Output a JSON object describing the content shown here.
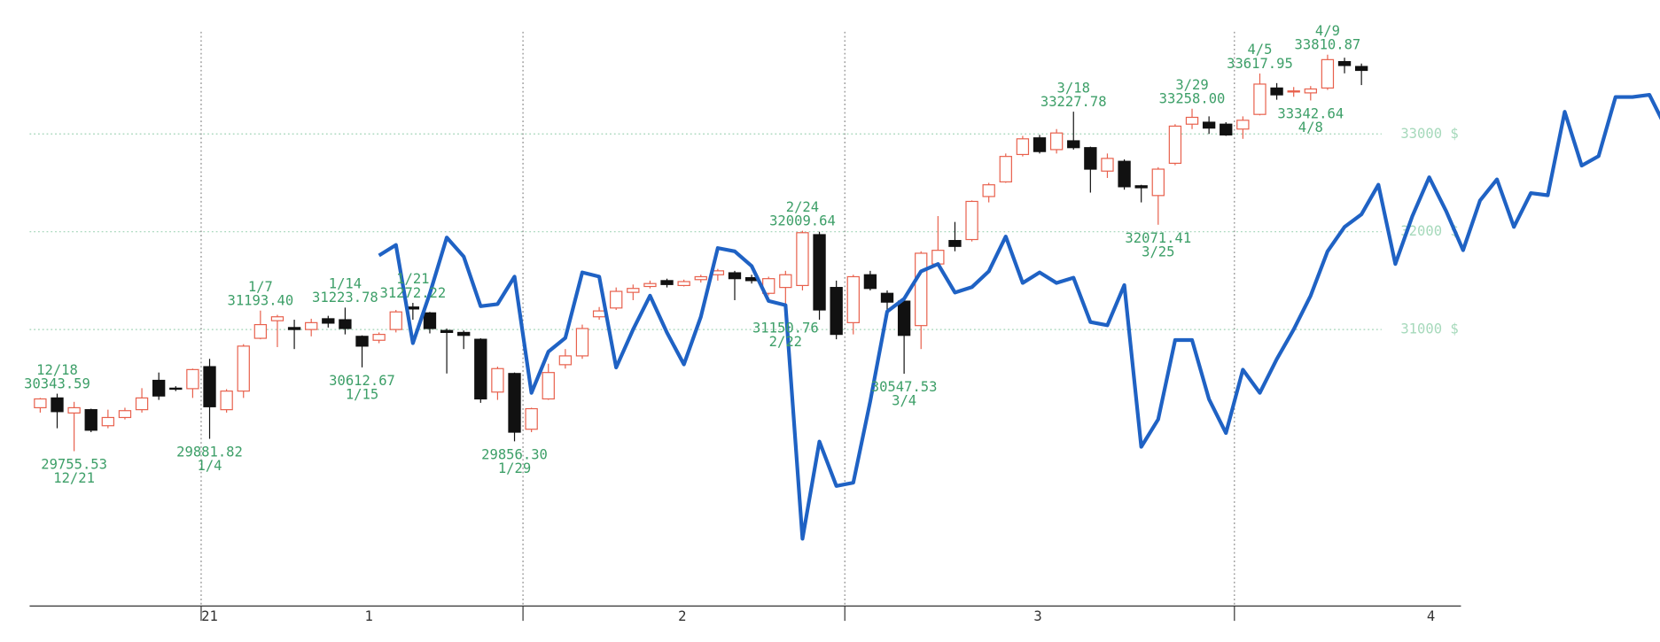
{
  "chart_data": {
    "type": "candlestick",
    "ylim": [
      28150,
      34370
    ],
    "yticks": [
      {
        "value": 31000,
        "label": "31000 $"
      },
      {
        "value": 32000,
        "label": "32000 $"
      },
      {
        "value": 33000,
        "label": "33000 $"
      }
    ],
    "xticks": [
      {
        "value": 10,
        "label": "21"
      },
      {
        "value": 19.4,
        "label": "1"
      },
      {
        "value": 37.9,
        "label": "2"
      },
      {
        "value": 58.9,
        "label": "3"
      },
      {
        "value": 82.1,
        "label": "4"
      }
    ],
    "xgrid": [
      9.5,
      28.5,
      47.5,
      70.5
    ],
    "grid": true,
    "categories": [
      null,
      "12/18",
      "12/21",
      null,
      null,
      null,
      null,
      null,
      null,
      null,
      "1/4",
      null,
      null,
      "1/7",
      null,
      null,
      null,
      null,
      "1/14",
      "1/15",
      null,
      null,
      "1/21",
      null,
      null,
      null,
      null,
      null,
      "1/29",
      null,
      null,
      null,
      null,
      null,
      null,
      null,
      null,
      null,
      null,
      null,
      null,
      null,
      null,
      null,
      "2/22",
      "2/24",
      null,
      null,
      null,
      null,
      null,
      "3/4",
      null,
      null,
      null,
      null,
      null,
      null,
      null,
      null,
      null,
      "3/18",
      null,
      null,
      null,
      null,
      "3/25",
      null,
      "3/29",
      null,
      null,
      null,
      "4/5",
      null,
      null,
      "4/8",
      "4/9",
      null,
      null,
      null,
      null,
      null,
      null,
      null,
      null,
      null,
      null,
      null,
      null,
      null,
      null,
      null,
      null,
      null,
      null,
      null,
      null
    ],
    "series": [
      {
        "type": "candlestick",
        "up_color": "#e8604c",
        "down_color": "#111111",
        "open": [
          30200,
          30300,
          30146,
          30180,
          30016,
          30100,
          30180,
          30480,
          30400,
          30395,
          30620,
          30180,
          30370,
          30910,
          31090,
          31020,
          31000,
          31110,
          31100,
          30930,
          30890,
          31000,
          31230,
          31170,
          30990,
          30970,
          30900,
          30360,
          30550,
          29980,
          30290,
          30640,
          30730,
          31130,
          31220,
          31380,
          31440,
          31500,
          31450,
          31510,
          31560,
          31580,
          31530,
          31370,
          31430,
          31450,
          31970,
          31430,
          31070,
          31560,
          31370,
          31290,
          31040,
          31670,
          31910,
          31920,
          32360,
          32510,
          32790,
          32960,
          32840,
          32930,
          32860,
          32620,
          32720,
          32470,
          32370,
          32700,
          33100,
          33120,
          33100,
          33050,
          33200,
          33470,
          33430,
          33420,
          33470,
          33740,
          33690,
          null,
          null,
          null,
          null,
          null,
          null,
          null,
          null,
          null,
          null,
          null,
          null,
          null,
          null,
          null,
          null,
          null,
          null
        ],
        "high": [
          30300,
          30343.59,
          30260,
          30190,
          30180,
          30200,
          30400,
          30560,
          30420,
          30600,
          30700,
          30390,
          30850,
          31193.4,
          31150,
          31100,
          31110,
          31140,
          31223.78,
          30940,
          30970,
          31200,
          31272.22,
          31180,
          31010,
          30990,
          30910,
          30620,
          30560,
          30200,
          30650,
          30800,
          31050,
          31230,
          31430,
          31460,
          31500,
          31520,
          31510,
          31560,
          31620,
          31600,
          31560,
          31540,
          31600,
          32009.64,
          32000,
          31500,
          31560,
          31600,
          31400,
          31300,
          31800,
          32160,
          32100,
          32320,
          32500,
          32800,
          32980,
          32990,
          33050,
          33227.78,
          32870,
          32800,
          32740,
          32480,
          32660,
          33100,
          33258,
          33180,
          33120,
          33180,
          33617.95,
          33520,
          33480,
          33490,
          33810.87,
          33780,
          33720,
          null,
          null,
          null,
          null,
          null,
          null,
          null,
          null,
          null,
          null,
          null,
          null,
          null,
          null,
          null,
          null,
          null,
          null
        ],
        "low": [
          30150,
          29990,
          29755.53,
          29950,
          29990,
          30080,
          30150,
          30280,
          30370,
          30300,
          29881.82,
          30150,
          30300,
          30900,
          30820,
          30800,
          30930,
          31020,
          30950,
          30612.67,
          30860,
          30970,
          31100,
          30960,
          30550,
          30800,
          30250,
          30280,
          29856.3,
          29950,
          30280,
          30600,
          30700,
          31100,
          31200,
          31300,
          31420,
          31430,
          31440,
          31480,
          31500,
          31300,
          31470,
          31350,
          31150.76,
          31400,
          31100,
          30900,
          30950,
          31400,
          31200,
          30547.53,
          30800,
          31650,
          31800,
          31900,
          32300,
          32500,
          32770,
          32800,
          32800,
          32840,
          32400,
          32550,
          32430,
          32300,
          32071.41,
          32680,
          33050,
          33000,
          32980,
          32950,
          33190,
          33350,
          33380,
          33342.64,
          33450,
          33620,
          33500,
          null,
          null,
          null,
          null,
          null,
          null,
          null,
          null,
          null,
          null,
          null,
          null,
          null,
          null,
          null,
          null,
          null,
          null
        ],
        "close": [
          30290,
          30160,
          30200,
          29970,
          30100,
          30170,
          30300,
          30320,
          30390,
          30590,
          30210,
          30370,
          30830,
          31050,
          31130,
          31000,
          31070,
          31065,
          31010,
          30830,
          30950,
          31180,
          31210,
          31010,
          30970,
          30940,
          30290,
          30600,
          29950,
          30190,
          30560,
          30730,
          31010,
          31190,
          31390,
          31420,
          31470,
          31460,
          31490,
          31540,
          31600,
          31520,
          31500,
          31520,
          31560,
          31990,
          31200,
          30950,
          31540,
          31420,
          31280,
          30940,
          31780,
          31810,
          31850,
          32310,
          32480,
          32770,
          32950,
          32820,
          33010,
          32860,
          32640,
          32750,
          32460,
          32450,
          32640,
          33080,
          33170,
          33060,
          32990,
          33140,
          33510,
          33400,
          33440,
          33460,
          33760,
          33700,
          33650,
          null,
          null,
          null,
          null,
          null,
          null,
          null,
          null,
          null,
          null,
          null,
          null,
          null,
          null,
          null,
          null,
          null,
          null
        ]
      },
      {
        "type": "line",
        "color": "#1f62c4",
        "values": [
          null,
          null,
          null,
          null,
          null,
          null,
          null,
          null,
          null,
          null,
          null,
          null,
          null,
          null,
          null,
          null,
          null,
          null,
          null,
          null,
          31757,
          31865,
          30860,
          31368,
          31941,
          31746,
          31238,
          31260,
          31541,
          30352,
          30773,
          30914,
          31584,
          31541,
          30611,
          31000,
          31346,
          30968,
          30643,
          31130,
          31833,
          31800,
          31649,
          31292,
          31249,
          28860,
          29854,
          29400,
          29433,
          30265,
          31184,
          31314,
          31595,
          31670,
          31378,
          31433,
          31595,
          31951,
          31476,
          31584,
          31476,
          31530,
          31076,
          31043,
          31454,
          29800,
          30081,
          30892,
          30892,
          30287,
          29941,
          30589,
          30352,
          30697,
          31000,
          31346,
          31800,
          32049,
          32178,
          32481,
          31670,
          32157,
          32557,
          32211,
          31811,
          32319,
          32535,
          32049,
          32395,
          32373,
          33227,
          32676,
          32773,
          33378,
          33378,
          33400,
          33054
        ]
      }
    ],
    "annotations": [
      {
        "date": "12/18",
        "value": 30343.59
      },
      {
        "date": "12/21",
        "value": 29755.53
      },
      {
        "date": "1/4",
        "value": 29881.82
      },
      {
        "date": "1/7",
        "value": 31193.4,
        "label": "31193.40"
      },
      {
        "date": "1/14",
        "value": 31223.78
      },
      {
        "date": "1/15",
        "value": 30612.67
      },
      {
        "date": "1/21",
        "value": 31272.22
      },
      {
        "date": "1/29",
        "value": 29856.3,
        "label": "29856.30"
      },
      {
        "date": "2/22",
        "value": 31150.76
      },
      {
        "date": "2/24",
        "value": 32009.64
      },
      {
        "date": "3/4",
        "value": 30547.53
      },
      {
        "date": "3/18",
        "value": 33227.78
      },
      {
        "date": "3/25",
        "value": 32071.41
      },
      {
        "date": "3/29",
        "value": 33258,
        "label": "33258.00"
      },
      {
        "date": "4/5",
        "value": 33617.95
      },
      {
        "date": "4/8",
        "value": 33342.64
      },
      {
        "date": "4/9",
        "value": 33810.87
      }
    ]
  }
}
